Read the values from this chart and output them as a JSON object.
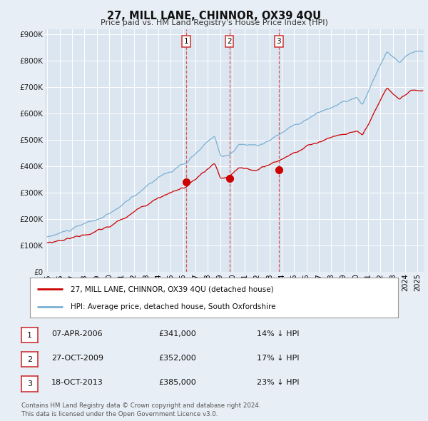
{
  "title": "27, MILL LANE, CHINNOR, OX39 4QU",
  "subtitle": "Price paid vs. HM Land Registry's House Price Index (HPI)",
  "bg_color": "#e8eef5",
  "plot_bg_color": "#dce6f0",
  "grid_color": "#ffffff",
  "red_color": "#cc0000",
  "blue_color": "#7ab0d4",
  "purchases": [
    {
      "date_float": 2006.25,
      "price": 341000,
      "label": "1"
    },
    {
      "date_float": 2009.75,
      "price": 352000,
      "label": "2"
    },
    {
      "date_float": 2013.75,
      "price": 385000,
      "label": "3"
    }
  ],
  "legend_house_label": "27, MILL LANE, CHINNOR, OX39 4QU (detached house)",
  "legend_hpi_label": "HPI: Average price, detached house, South Oxfordshire",
  "table_rows": [
    {
      "num": "1",
      "date": "07-APR-2006",
      "price": "£341,000",
      "pct": "14% ↓ HPI"
    },
    {
      "num": "2",
      "date": "27-OCT-2009",
      "price": "£352,000",
      "pct": "17% ↓ HPI"
    },
    {
      "num": "3",
      "date": "18-OCT-2013",
      "price": "£385,000",
      "pct": "23% ↓ HPI"
    }
  ],
  "footer": "Contains HM Land Registry data © Crown copyright and database right 2024.\nThis data is licensed under the Open Government Licence v3.0.",
  "yticks": [
    0,
    100000,
    200000,
    300000,
    400000,
    500000,
    600000,
    700000,
    800000,
    900000
  ],
  "ytick_labels": [
    "£0",
    "£100K",
    "£200K",
    "£300K",
    "£400K",
    "£500K",
    "£600K",
    "£700K",
    "£800K",
    "£900K"
  ],
  "xstart": 1995.0,
  "xend": 2025.5,
  "ymax": 900000
}
